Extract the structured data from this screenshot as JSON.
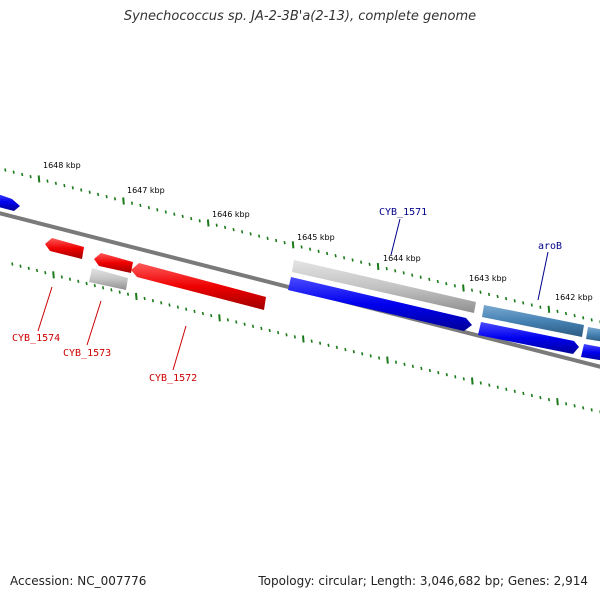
{
  "title": "Synechococcus sp. JA-2-3B'a(2-13), complete genome",
  "footer": {
    "accession": "Accession: NC_007776",
    "topology": "Topology: circular; Length: 3,046,682 bp; Genes: 2,914"
  },
  "ticks": [
    {
      "label": "1648 kbp"
    },
    {
      "label": "1647 kbp"
    },
    {
      "label": "1646 kbp"
    },
    {
      "label": "1645 kbp"
    },
    {
      "label": "1644 kbp"
    },
    {
      "label": "1643 kbp"
    },
    {
      "label": "1642 kbp"
    }
  ],
  "gene_labels": {
    "cyb1571": "CYB_1571",
    "arob": "aroB",
    "cyb1574": "CYB_1574",
    "cyb1573": "CYB_1573",
    "cyb1572": "CYB_1572"
  },
  "colors": {
    "backbone": "#7a7a7a",
    "tick": "#1a7a1a",
    "blue_gene": "#0000ee",
    "red_gene": "#ee0000",
    "gray_gene": "#c0c0c0",
    "steelblue_gene": "#4682b4",
    "blue_label": "#00008b",
    "red_label": "#cc0000"
  }
}
